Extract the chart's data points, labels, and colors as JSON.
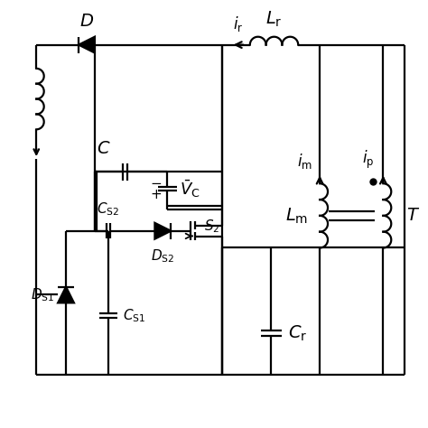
{
  "bg_color": "#ffffff",
  "line_color": "#000000",
  "lw": 1.6,
  "figsize": [
    4.74,
    4.74
  ],
  "dpi": 100
}
